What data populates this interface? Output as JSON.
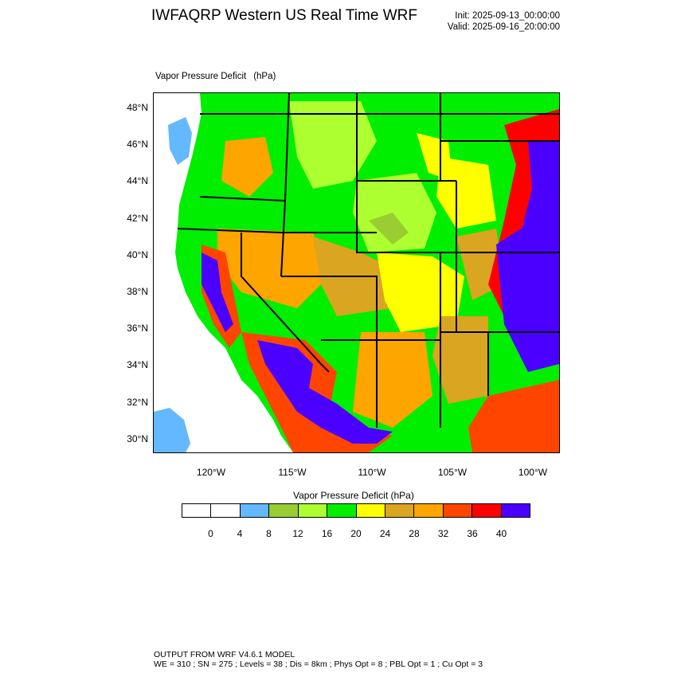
{
  "header": {
    "title": "IWFAQRP Western US Real Time WRF",
    "init": "Init: 2025-09-13_00:00:00",
    "valid": "Valid: 2025-09-16_20:00:00"
  },
  "map": {
    "field_label": "Vapor Pressure Deficit",
    "field_units": "(hPa)",
    "lat_labels": [
      "48°N",
      "46°N",
      "44°N",
      "42°N",
      "40°N",
      "38°N",
      "36°N",
      "34°N",
      "32°N",
      "30°N"
    ],
    "lon_labels": [
      "120°W",
      "115°W",
      "110°W",
      "105°W",
      "100°W"
    ]
  },
  "colorbar": {
    "title": "Vapor Pressure Deficit  (hPa)",
    "colors": [
      "#ffffff",
      "#ffffff",
      "#63b8ff",
      "#9acd32",
      "#adff2f",
      "#00ee00",
      "#ffff00",
      "#daa520",
      "#ffa500",
      "#ff4500",
      "#ff0000",
      "#4b00ff"
    ],
    "labels": [
      "0",
      "4",
      "8",
      "12",
      "16",
      "20",
      "24",
      "28",
      "32",
      "36",
      "40"
    ]
  },
  "footer": {
    "line1": "OUTPUT FROM WRF V4.6.1 MODEL",
    "line2": "WE = 310 ; SN = 275 ; Levels = 38 ; Dis = 8km ; Phys Opt = 8 ; PBL Opt = 1 ; Cu Opt = 3"
  }
}
